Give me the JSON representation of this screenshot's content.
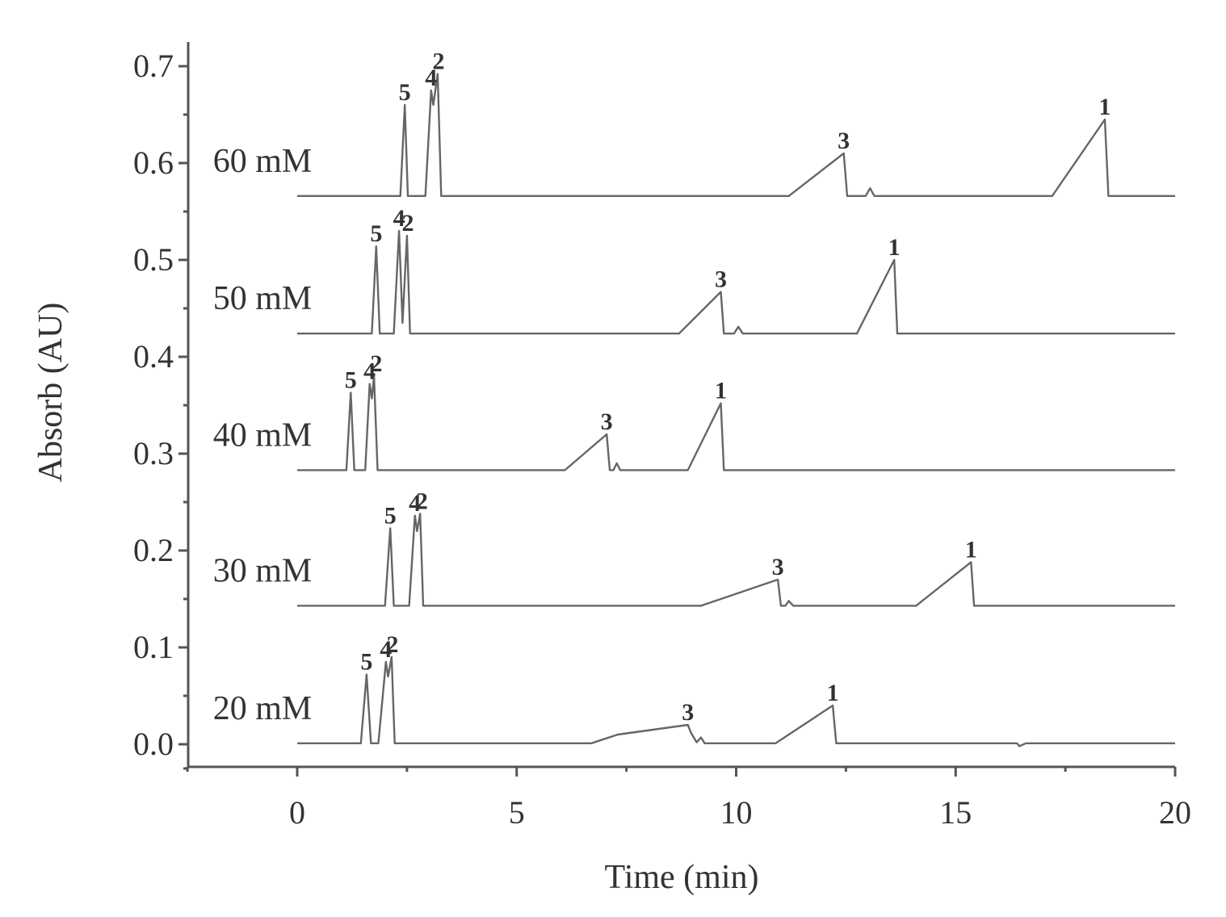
{
  "chart_data": {
    "type": "line",
    "title": "",
    "xlabel": "Time (min)",
    "ylabel": "Absorb (AU)",
    "xlim": [
      -2.5,
      20
    ],
    "ylim": [
      -0.03,
      0.73
    ],
    "x_ticks": [
      0,
      5,
      10,
      15,
      20
    ],
    "x_tick_labels": [
      "0",
      "5",
      "10",
      "15",
      "20"
    ],
    "y_ticks": [
      0.0,
      0.1,
      0.2,
      0.3,
      0.4,
      0.5,
      0.6,
      0.7
    ],
    "y_tick_labels": [
      "0.0",
      "0.1",
      "0.2",
      "0.3",
      "0.4",
      "0.5",
      "0.6",
      "0.7"
    ],
    "grid": false,
    "series": [
      {
        "name": "20 mM",
        "baseline": 0.001,
        "points": [
          [
            0,
            0.001
          ],
          [
            1.45,
            0.001
          ],
          [
            1.58,
            0.072
          ],
          [
            1.68,
            0.001
          ],
          [
            1.85,
            0.001
          ],
          [
            2.02,
            0.085
          ],
          [
            2.07,
            0.07
          ],
          [
            2.15,
            0.09
          ],
          [
            2.22,
            0.001
          ],
          [
            6.7,
            0.001
          ],
          [
            7.3,
            0.01
          ],
          [
            8.9,
            0.02
          ],
          [
            8.97,
            0.012
          ],
          [
            9.1,
            0.002
          ],
          [
            9.2,
            0.007
          ],
          [
            9.28,
            0.001
          ],
          [
            10.9,
            0.001
          ],
          [
            12.2,
            0.04
          ],
          [
            12.28,
            0.001
          ],
          [
            16.4,
            0.001
          ],
          [
            16.45,
            -0.002
          ],
          [
            16.6,
            0.001
          ],
          [
            20,
            0.001
          ]
        ],
        "peak_labels": [
          {
            "text": "5",
            "x": 1.58,
            "y": 0.072
          },
          {
            "text": "4",
            "x": 2.02,
            "y": 0.085
          },
          {
            "text": "2",
            "x": 2.17,
            "y": 0.09
          },
          {
            "text": "3",
            "x": 8.9,
            "y": 0.02
          },
          {
            "text": "1",
            "x": 12.2,
            "y": 0.04
          }
        ]
      },
      {
        "name": "30 mM",
        "baseline": 0.143,
        "points": [
          [
            0,
            0.143
          ],
          [
            2.0,
            0.143
          ],
          [
            2.12,
            0.223
          ],
          [
            2.2,
            0.143
          ],
          [
            2.55,
            0.143
          ],
          [
            2.68,
            0.236
          ],
          [
            2.73,
            0.22
          ],
          [
            2.8,
            0.238
          ],
          [
            2.87,
            0.143
          ],
          [
            9.2,
            0.143
          ],
          [
            10.95,
            0.17
          ],
          [
            11.02,
            0.143
          ],
          [
            11.12,
            0.143
          ],
          [
            11.2,
            0.148
          ],
          [
            11.3,
            0.143
          ],
          [
            14.1,
            0.143
          ],
          [
            15.35,
            0.188
          ],
          [
            15.42,
            0.143
          ],
          [
            20,
            0.143
          ]
        ],
        "peak_labels": [
          {
            "text": "5",
            "x": 2.12,
            "y": 0.223
          },
          {
            "text": "4",
            "x": 2.68,
            "y": 0.236
          },
          {
            "text": "2",
            "x": 2.84,
            "y": 0.238
          },
          {
            "text": "3",
            "x": 10.95,
            "y": 0.17
          },
          {
            "text": "1",
            "x": 15.35,
            "y": 0.188
          }
        ]
      },
      {
        "name": "40 mM",
        "baseline": 0.283,
        "points": [
          [
            0,
            0.283
          ],
          [
            1.12,
            0.283
          ],
          [
            1.22,
            0.363
          ],
          [
            1.3,
            0.283
          ],
          [
            1.55,
            0.283
          ],
          [
            1.65,
            0.372
          ],
          [
            1.7,
            0.357
          ],
          [
            1.75,
            0.38
          ],
          [
            1.83,
            0.283
          ],
          [
            6.1,
            0.283
          ],
          [
            7.05,
            0.32
          ],
          [
            7.12,
            0.283
          ],
          [
            7.2,
            0.283
          ],
          [
            7.28,
            0.29
          ],
          [
            7.36,
            0.283
          ],
          [
            8.9,
            0.283
          ],
          [
            9.65,
            0.352
          ],
          [
            9.72,
            0.283
          ],
          [
            20,
            0.283
          ]
        ],
        "peak_labels": [
          {
            "text": "5",
            "x": 1.22,
            "y": 0.363
          },
          {
            "text": "4",
            "x": 1.65,
            "y": 0.372
          },
          {
            "text": "2",
            "x": 1.8,
            "y": 0.38
          },
          {
            "text": "3",
            "x": 7.05,
            "y": 0.32
          },
          {
            "text": "1",
            "x": 9.65,
            "y": 0.352
          }
        ]
      },
      {
        "name": "50 mM",
        "baseline": 0.424,
        "points": [
          [
            0,
            0.424
          ],
          [
            1.7,
            0.424
          ],
          [
            1.8,
            0.514
          ],
          [
            1.88,
            0.424
          ],
          [
            2.2,
            0.424
          ],
          [
            2.32,
            0.53
          ],
          [
            2.4,
            0.435
          ],
          [
            2.5,
            0.525
          ],
          [
            2.57,
            0.424
          ],
          [
            8.7,
            0.424
          ],
          [
            9.65,
            0.467
          ],
          [
            9.72,
            0.424
          ],
          [
            9.95,
            0.424
          ],
          [
            10.05,
            0.431
          ],
          [
            10.15,
            0.424
          ],
          [
            12.75,
            0.424
          ],
          [
            13.6,
            0.5
          ],
          [
            13.67,
            0.424
          ],
          [
            20,
            0.424
          ]
        ],
        "peak_labels": [
          {
            "text": "5",
            "x": 1.8,
            "y": 0.514
          },
          {
            "text": "4",
            "x": 2.32,
            "y": 0.53
          },
          {
            "text": "2",
            "x": 2.52,
            "y": 0.525
          },
          {
            "text": "3",
            "x": 9.65,
            "y": 0.467
          },
          {
            "text": "1",
            "x": 13.6,
            "y": 0.5
          }
        ]
      },
      {
        "name": "60 mM",
        "baseline": 0.566,
        "points": [
          [
            0,
            0.566
          ],
          [
            2.35,
            0.566
          ],
          [
            2.45,
            0.66
          ],
          [
            2.52,
            0.566
          ],
          [
            2.92,
            0.566
          ],
          [
            3.05,
            0.675
          ],
          [
            3.1,
            0.66
          ],
          [
            3.2,
            0.692
          ],
          [
            3.28,
            0.566
          ],
          [
            11.2,
            0.566
          ],
          [
            12.45,
            0.61
          ],
          [
            12.53,
            0.566
          ],
          [
            12.95,
            0.566
          ],
          [
            13.05,
            0.574
          ],
          [
            13.15,
            0.566
          ],
          [
            17.2,
            0.566
          ],
          [
            18.4,
            0.645
          ],
          [
            18.48,
            0.566
          ],
          [
            20,
            0.566
          ]
        ],
        "peak_labels": [
          {
            "text": "5",
            "x": 2.45,
            "y": 0.66
          },
          {
            "text": "4",
            "x": 3.05,
            "y": 0.675
          },
          {
            "text": "2",
            "x": 3.22,
            "y": 0.692
          },
          {
            "text": "3",
            "x": 12.45,
            "y": 0.61
          },
          {
            "text": "1",
            "x": 18.4,
            "y": 0.645
          }
        ]
      }
    ]
  }
}
